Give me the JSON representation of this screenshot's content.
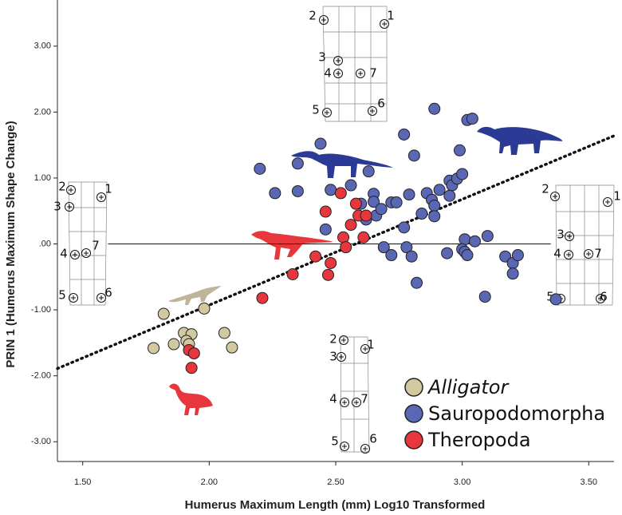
{
  "chart_data": {
    "type": "scatter",
    "x_label": "Humerus Maximum Length (mm) Log10 Transformed",
    "y_label": "PRIN 1 (Humerus Maximum Shape Change)",
    "xlim": [
      1.4,
      3.6
    ],
    "ylim": [
      -3.3,
      3.7
    ],
    "xticks": [
      {
        "value": 1.5,
        "label": "1.50"
      },
      {
        "value": 2,
        "label": "2.00"
      },
      {
        "value": 2.5,
        "label": "2.50"
      },
      {
        "value": 3,
        "label": "3.00"
      },
      {
        "value": 3.5,
        "label": "3.50"
      }
    ],
    "yticks": [
      {
        "value": 3,
        "label": "3.00"
      },
      {
        "value": 2,
        "label": "2.00"
      },
      {
        "value": 1,
        "label": "1.00"
      },
      {
        "value": 0,
        "label": ".00"
      },
      {
        "value": -1,
        "label": "-1.00"
      },
      {
        "value": -2,
        "label": "-2.00"
      },
      {
        "value": -3,
        "label": "-3.00"
      }
    ],
    "legend": "lower right",
    "trend_line": {
      "x": [
        1.4,
        3.6
      ],
      "y": [
        -1.89,
        1.64
      ]
    },
    "reference_line": {
      "y": 0,
      "x": [
        1.6,
        3.35
      ]
    },
    "series": [
      {
        "name": "Alligator",
        "color": "#d3c9a0",
        "x": [
          1.82,
          1.78,
          1.86,
          1.9,
          1.93,
          1.91,
          1.92,
          1.98,
          2.06,
          2.09
        ],
        "y": [
          -1.06,
          -1.58,
          -1.52,
          -1.35,
          -1.37,
          -1.47,
          -1.52,
          -0.98,
          -1.35,
          -1.57
        ]
      },
      {
        "name": "Sauropodomorpha",
        "color": "#5a67b5",
        "x": [
          2.2,
          2.26,
          2.35,
          2.35,
          2.44,
          2.48,
          2.46,
          2.56,
          2.63,
          2.6,
          2.62,
          2.65,
          2.65,
          2.66,
          2.68,
          2.72,
          2.74,
          2.69,
          2.72,
          2.77,
          2.78,
          2.8,
          2.77,
          2.81,
          2.79,
          2.82,
          2.84,
          2.86,
          2.88,
          2.89,
          2.89,
          2.91,
          2.89,
          2.95,
          2.96,
          2.98,
          2.95,
          2.94,
          2.99,
          3.02,
          3.04,
          3.01,
          3.0,
          3.01,
          3.02,
          3.05,
          3.1,
          3.0,
          3.17,
          3.2,
          3.22,
          3.2,
          3.09,
          3.37
        ],
        "y": [
          1.14,
          0.77,
          1.22,
          0.8,
          1.52,
          0.82,
          0.22,
          0.89,
          1.1,
          0.61,
          0.37,
          0.76,
          0.64,
          0.43,
          0.53,
          0.63,
          0.63,
          -0.05,
          -0.17,
          0.25,
          -0.05,
          -0.19,
          1.66,
          1.34,
          0.75,
          -0.59,
          0.46,
          0.77,
          0.67,
          0.58,
          0.42,
          0.82,
          2.05,
          0.96,
          0.89,
          0.99,
          0.73,
          -0.14,
          1.42,
          1.88,
          1.9,
          0.07,
          -0.08,
          -0.12,
          -0.17,
          0.04,
          0.12,
          1.06,
          -0.19,
          -0.29,
          -0.17,
          -0.45,
          -0.8,
          -0.84
        ]
      },
      {
        "name": "Theropoda",
        "color": "#e8373c",
        "x": [
          1.92,
          1.94,
          1.93,
          2.21,
          2.33,
          2.42,
          2.47,
          2.48,
          2.46,
          2.52,
          2.53,
          2.54,
          2.56,
          2.58,
          2.59,
          2.62,
          2.61
        ],
        "y": [
          -1.61,
          -1.66,
          -1.88,
          -0.82,
          -0.46,
          -0.19,
          -0.47,
          -0.29,
          0.49,
          0.77,
          0.1,
          -0.05,
          0.29,
          0.61,
          0.43,
          0.43,
          0.1
        ]
      }
    ],
    "insets": [
      {
        "labels": [
          "1",
          "2",
          "3",
          "4",
          "5",
          "6",
          "7"
        ]
      },
      {
        "labels": [
          "1",
          "2",
          "3",
          "4",
          "5",
          "6",
          "7"
        ]
      },
      {
        "labels": [
          "1",
          "2",
          "3",
          "4",
          "5",
          "6",
          "7"
        ]
      },
      {
        "labels": [
          "1",
          "2",
          "3",
          "4",
          "5",
          "6",
          "7"
        ]
      }
    ]
  }
}
